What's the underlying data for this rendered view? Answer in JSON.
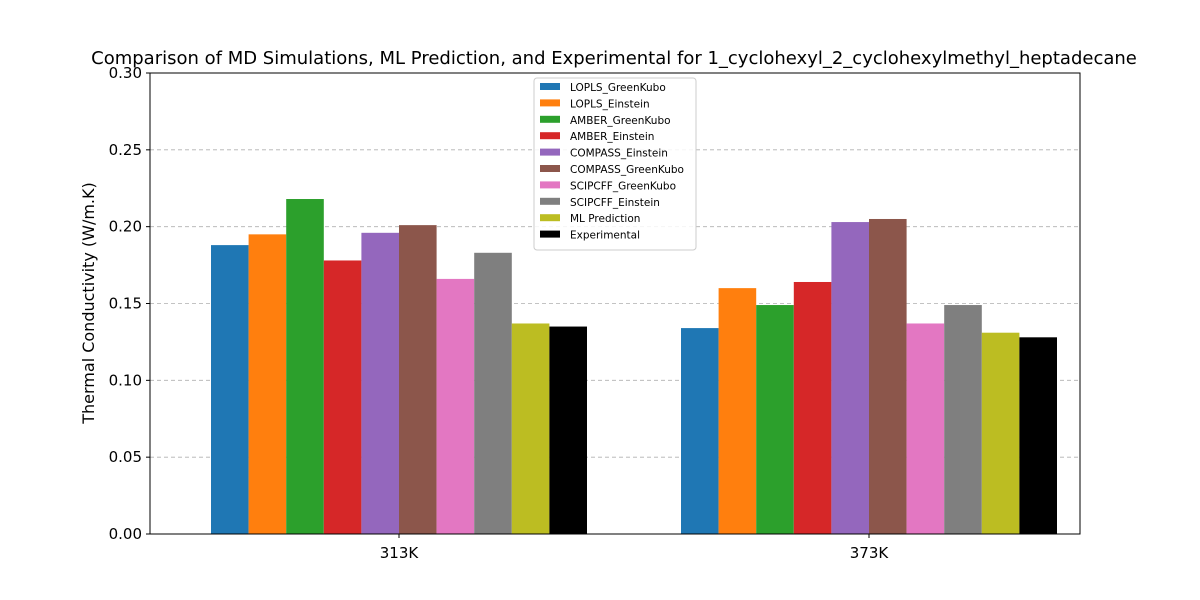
{
  "chart_data": {
    "type": "bar",
    "title": "Comparison of MD Simulations, ML Prediction, and Experimental for 1_cyclohexyl_2_cyclohexylmethyl_heptadecane",
    "xlabel": "",
    "ylabel": "Thermal Conductivity (W/m.K)",
    "ylim": [
      0,
      0.3
    ],
    "yticks": [
      "0.00",
      "0.05",
      "0.10",
      "0.15",
      "0.20",
      "0.25",
      "0.30"
    ],
    "grid": "y-dashed",
    "legend_position": "top-center",
    "categories": [
      "313K",
      "373K"
    ],
    "series": [
      {
        "name": "LOPLS_GreenKubo",
        "color": "#1f77b4",
        "values": [
          0.188,
          0.134
        ]
      },
      {
        "name": "LOPLS_Einstein",
        "color": "#ff7f0e",
        "values": [
          0.195,
          0.16
        ]
      },
      {
        "name": "AMBER_GreenKubo",
        "color": "#2ca02c",
        "values": [
          0.218,
          0.149
        ]
      },
      {
        "name": "AMBER_Einstein",
        "color": "#d62728",
        "values": [
          0.178,
          0.164
        ]
      },
      {
        "name": "COMPASS_Einstein",
        "color": "#9467bd",
        "values": [
          0.196,
          0.203
        ]
      },
      {
        "name": "COMPASS_GreenKubo",
        "color": "#8c564b",
        "values": [
          0.201,
          0.205
        ]
      },
      {
        "name": "SCIPCFF_GreenKubo",
        "color": "#e377c2",
        "values": [
          0.166,
          0.137
        ]
      },
      {
        "name": "SCIPCFF_Einstein",
        "color": "#7f7f7f",
        "values": [
          0.183,
          0.149
        ]
      },
      {
        "name": "ML Prediction",
        "color": "#bcbd22",
        "values": [
          0.137,
          0.131
        ]
      },
      {
        "name": "Experimental",
        "color": "#000000",
        "values": [
          0.135,
          0.128
        ]
      }
    ]
  }
}
